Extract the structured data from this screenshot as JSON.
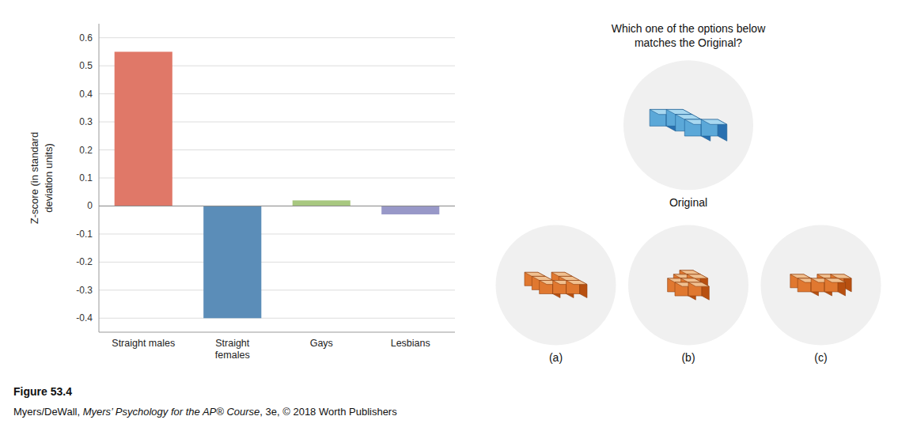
{
  "chart_data": {
    "type": "bar",
    "categories": [
      "Straight males",
      "Straight\nfemales",
      "Gays",
      "Lesbians"
    ],
    "values": [
      0.55,
      -0.4,
      0.02,
      -0.03
    ],
    "colors": [
      "#E07868",
      "#5B8DB8",
      "#A8C880",
      "#9898C8"
    ],
    "y_label": "Z-score (in standard\ndeviation units)",
    "ylim": [
      -0.45,
      0.65
    ],
    "yticks": [
      -0.4,
      -0.3,
      -0.2,
      -0.1,
      0,
      0.1,
      0.2,
      0.3,
      0.4,
      0.5,
      0.6
    ],
    "grid": true,
    "annotations": [
      "Which one of the options below\nmatches the Original?",
      "Original",
      "(a)",
      "(b)",
      "(c)",
      "Figure 53.4",
      "Myers/DeWall, ",
      "Myers’ Psychology for the AP® Course",
      ", 3e, © 2018 Worth Publishers"
    ]
  }
}
